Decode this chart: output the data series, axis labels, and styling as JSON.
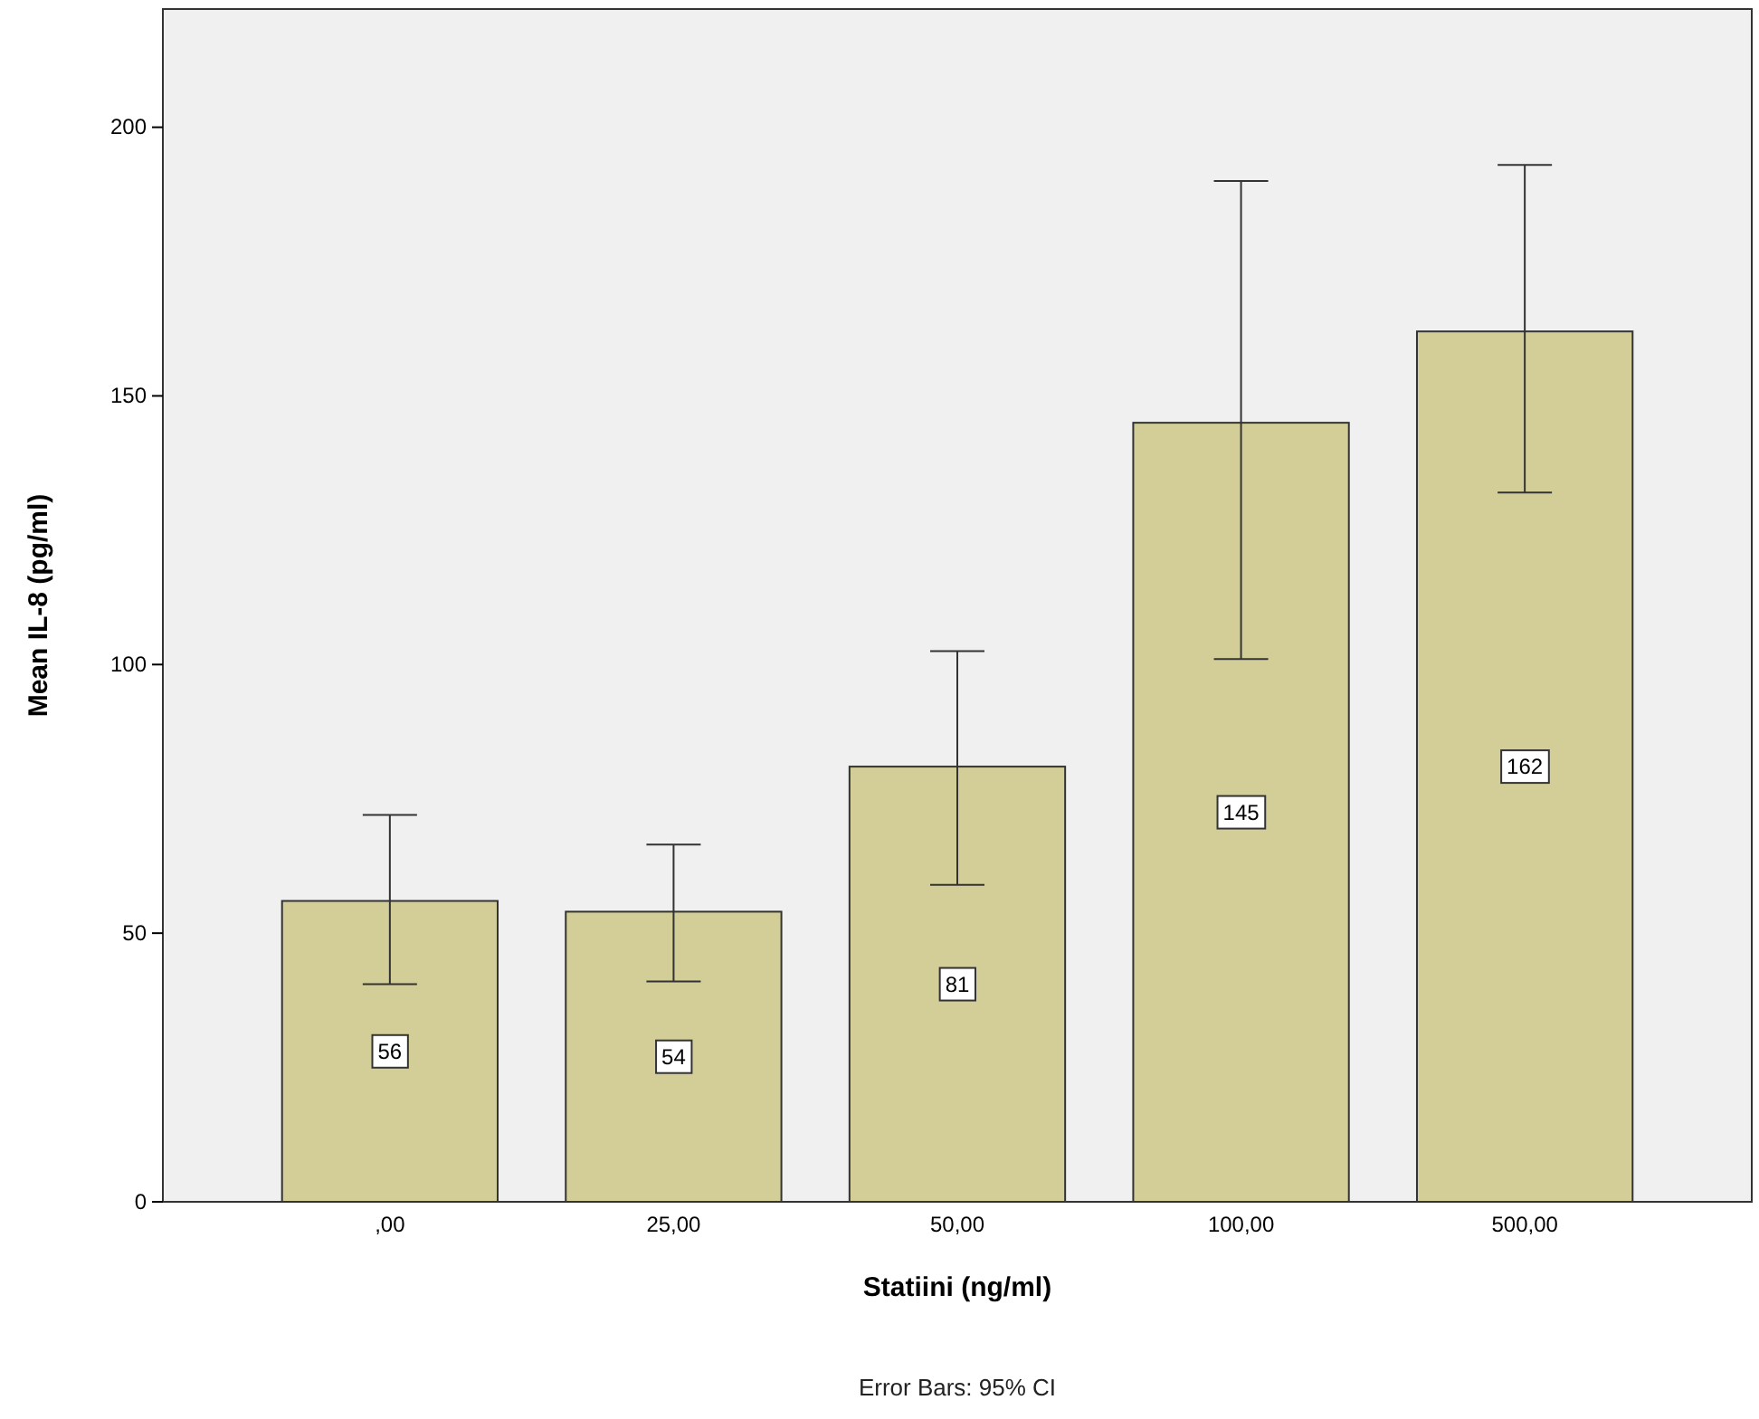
{
  "chart_data": {
    "type": "bar",
    "xlabel": "Statiini (ng/ml)",
    "ylabel": "Mean IL-8 (pg/ml)",
    "categories": [
      ",00",
      "25,00",
      "50,00",
      "100,00",
      "500,00"
    ],
    "values": [
      56,
      54,
      81,
      145,
      162
    ],
    "errors": [
      [
        40.5,
        72
      ],
      [
        41,
        66.5
      ],
      [
        59,
        102.5
      ],
      [
        101,
        190
      ],
      [
        132,
        193
      ]
    ],
    "value_labels": [
      "56",
      "54",
      "81",
      "145",
      "162"
    ],
    "color": "#d3ce97",
    "ylim": [
      0,
      222
    ],
    "yticks": [
      0,
      50,
      100,
      150,
      200
    ],
    "annotations": [
      "Error Bars: 95% CI"
    ]
  }
}
